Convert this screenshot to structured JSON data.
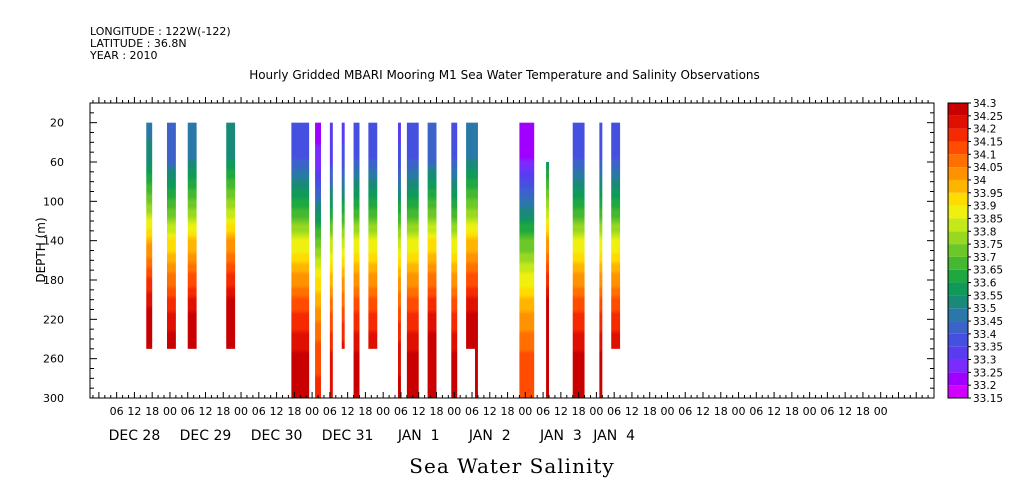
{
  "header": {
    "longitude": "LONGITUDE : 122W(-122)",
    "latitude": "LATITUDE : 36.8N",
    "year": "YEAR : 2010"
  },
  "chart_data": {
    "type": "heatmap",
    "title": "Hourly Gridded MBARI Mooring M1 Sea Water Temperature and Salinity Observations",
    "subtitle": "Sea Water Salinity",
    "xlabel": "",
    "ylabel": "DEPTH (m)",
    "ylim": [
      300,
      0
    ],
    "xlim_hours": [
      -57,
      228
    ],
    "y_ticks": [
      20,
      60,
      100,
      140,
      180,
      220,
      260,
      300
    ],
    "x_hour_ticks": [
      {
        "h": -48,
        "label": "06"
      },
      {
        "h": -42,
        "label": "12"
      },
      {
        "h": -36,
        "label": "18"
      },
      {
        "h": -30,
        "label": "00"
      },
      {
        "h": -24,
        "label": "06"
      },
      {
        "h": -18,
        "label": "12"
      },
      {
        "h": -12,
        "label": "18"
      },
      {
        "h": -6,
        "label": "00"
      },
      {
        "h": 0,
        "label": "06"
      },
      {
        "h": 6,
        "label": "12"
      },
      {
        "h": 12,
        "label": "18"
      },
      {
        "h": 18,
        "label": "00"
      },
      {
        "h": 24,
        "label": "06"
      },
      {
        "h": 30,
        "label": "12"
      },
      {
        "h": 36,
        "label": "18"
      },
      {
        "h": 42,
        "label": "00"
      },
      {
        "h": 48,
        "label": "06"
      },
      {
        "h": 54,
        "label": "12"
      },
      {
        "h": 60,
        "label": "18"
      },
      {
        "h": 66,
        "label": "00"
      },
      {
        "h": 72,
        "label": "06"
      },
      {
        "h": 78,
        "label": "12"
      },
      {
        "h": 84,
        "label": "18"
      },
      {
        "h": 90,
        "label": "00"
      },
      {
        "h": 96,
        "label": "06"
      },
      {
        "h": 102,
        "label": "12"
      },
      {
        "h": 108,
        "label": "18"
      },
      {
        "h": 114,
        "label": "00"
      },
      {
        "h": 120,
        "label": "06"
      },
      {
        "h": 126,
        "label": "12"
      },
      {
        "h": 132,
        "label": "18"
      },
      {
        "h": 138,
        "label": "00"
      },
      {
        "h": 144,
        "label": "06"
      },
      {
        "h": 150,
        "label": "12"
      },
      {
        "h": 156,
        "label": "18"
      },
      {
        "h": 162,
        "label": "00"
      },
      {
        "h": 168,
        "label": "06"
      },
      {
        "h": 174,
        "label": "12"
      },
      {
        "h": 180,
        "label": "18"
      },
      {
        "h": 186,
        "label": "00"
      },
      {
        "h": 192,
        "label": "06"
      },
      {
        "h": 198,
        "label": "12"
      },
      {
        "h": 204,
        "label": "18"
      },
      {
        "h": 210,
        "label": "00"
      }
    ],
    "date_labels": [
      {
        "h": -42,
        "label": "DEC 28"
      },
      {
        "h": -18,
        "label": "DEC 29"
      },
      {
        "h": 6,
        "label": "DEC 30"
      },
      {
        "h": 30,
        "label": "DEC 31"
      },
      {
        "h": 54,
        "label": "JAN  1"
      },
      {
        "h": 78,
        "label": "JAN  2"
      },
      {
        "h": 102,
        "label": "JAN  3"
      },
      {
        "h": 120,
        "label": "JAN  4"
      }
    ],
    "observation_columns": [
      {
        "start_h": -38,
        "end_h": -36,
        "top_depth": 20,
        "bottom_depth": 250,
        "surface_value": 33.48
      },
      {
        "start_h": -31,
        "end_h": -28,
        "top_depth": 20,
        "bottom_depth": 250,
        "surface_value": 33.4
      },
      {
        "start_h": -24,
        "end_h": -21,
        "top_depth": 20,
        "bottom_depth": 250,
        "surface_value": 33.45
      },
      {
        "start_h": -11,
        "end_h": -8,
        "top_depth": 20,
        "bottom_depth": 250,
        "surface_value": 33.5
      },
      {
        "start_h": 11,
        "end_h": 17,
        "top_depth": 20,
        "bottom_depth": 300,
        "surface_value": 33.35
      },
      {
        "start_h": 19,
        "end_h": 21,
        "top_depth": 20,
        "bottom_depth": 300,
        "surface_value": 33.22
      },
      {
        "start_h": 24,
        "end_h": 25,
        "top_depth": 20,
        "bottom_depth": 300,
        "surface_value": 33.3
      },
      {
        "start_h": 28,
        "end_h": 29,
        "top_depth": 20,
        "bottom_depth": 250,
        "surface_value": 33.32
      },
      {
        "start_h": 32,
        "end_h": 34,
        "top_depth": 20,
        "bottom_depth": 300,
        "surface_value": 33.35
      },
      {
        "start_h": 37,
        "end_h": 40,
        "top_depth": 20,
        "bottom_depth": 250,
        "surface_value": 33.35
      },
      {
        "start_h": 47,
        "end_h": 48,
        "top_depth": 20,
        "bottom_depth": 300,
        "surface_value": 33.32
      },
      {
        "start_h": 50,
        "end_h": 54,
        "top_depth": 20,
        "bottom_depth": 300,
        "surface_value": 33.35
      },
      {
        "start_h": 57,
        "end_h": 60,
        "top_depth": 20,
        "bottom_depth": 300,
        "surface_value": 33.4
      },
      {
        "start_h": 65,
        "end_h": 67,
        "top_depth": 20,
        "bottom_depth": 300,
        "surface_value": 33.35
      },
      {
        "start_h": 70,
        "end_h": 73,
        "top_depth": 20,
        "bottom_depth": 250,
        "surface_value": 33.45
      },
      {
        "start_h": 73,
        "end_h": 74,
        "top_depth": 20,
        "bottom_depth": 300,
        "surface_value": 33.45
      },
      {
        "start_h": 88,
        "end_h": 93,
        "top_depth": 20,
        "bottom_depth": 300,
        "surface_value": 33.2
      },
      {
        "start_h": 97,
        "end_h": 98,
        "top_depth": 60,
        "bottom_depth": 300,
        "surface_value": 33.5
      },
      {
        "start_h": 106,
        "end_h": 110,
        "top_depth": 20,
        "bottom_depth": 300,
        "surface_value": 33.35
      },
      {
        "start_h": 115,
        "end_h": 116,
        "top_depth": 20,
        "bottom_depth": 300,
        "surface_value": 33.35
      },
      {
        "start_h": 119,
        "end_h": 122,
        "top_depth": 20,
        "bottom_depth": 250,
        "surface_value": 33.35
      }
    ],
    "depth_profile": [
      {
        "depth": 20,
        "offset": 0
      },
      {
        "depth": 60,
        "offset": 0.05
      },
      {
        "depth": 100,
        "offset": 0.25
      },
      {
        "depth": 140,
        "offset": 0.5
      },
      {
        "depth": 180,
        "offset": 0.68
      },
      {
        "depth": 220,
        "offset": 0.82
      },
      {
        "depth": 260,
        "offset": 0.92
      },
      {
        "depth": 300,
        "offset": 0.94
      }
    ],
    "colorbar": {
      "levels": [
        33.15,
        33.2,
        33.25,
        33.3,
        33.35,
        33.4,
        33.45,
        33.5,
        33.55,
        33.6,
        33.65,
        33.7,
        33.75,
        33.8,
        33.85,
        33.9,
        33.95,
        34,
        34.05,
        34.1,
        34.15,
        34.2,
        34.25,
        34.3
      ],
      "labels": [
        "33.15",
        "33.2",
        "33.25",
        "33.3",
        "33.35",
        "33.4",
        "33.45",
        "33.5",
        "33.55",
        "33.6",
        "33.65",
        "33.7",
        "33.75",
        "33.8",
        "33.85",
        "33.9",
        "33.95",
        "34",
        "34.05",
        "34.1",
        "34.15",
        "34.2",
        "34.25",
        "34.3"
      ],
      "colors": [
        "#d200ff",
        "#a000ff",
        "#7a2cff",
        "#5a3cf0",
        "#4650e0",
        "#3c64c8",
        "#2a78a8",
        "#1a8a78",
        "#109a5a",
        "#20a840",
        "#44b830",
        "#6cc828",
        "#98d820",
        "#c4e818",
        "#f0f010",
        "#ffdc00",
        "#ffb400",
        "#ff9200",
        "#ff7000",
        "#ff4c00",
        "#f52a00",
        "#e01000",
        "#c80000",
        "#a80000"
      ]
    },
    "legend_placement": "right",
    "grid": false
  }
}
